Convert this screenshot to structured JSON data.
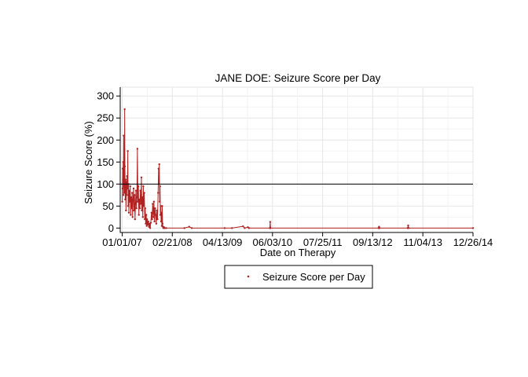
{
  "chart_data": {
    "type": "line",
    "title": "JANE DOE: Seizure Score per Day",
    "xlabel": "Date on Therapy",
    "ylabel": "Seizure Score (%)",
    "x_ticks": [
      "01/01/07",
      "02/21/08",
      "04/13/09",
      "06/03/10",
      "07/25/11",
      "09/13/12",
      "11/04/13",
      "12/26/14"
    ],
    "y_ticks": [
      0,
      50,
      100,
      150,
      200,
      250,
      300
    ],
    "xlim": [
      "12/15/06",
      "12/26/14"
    ],
    "ylim": [
      -10,
      320
    ],
    "grid": true,
    "reference_line": {
      "y": 100,
      "color": "#000000"
    },
    "legend": {
      "position": "bottom",
      "boxed": true,
      "entries": [
        "Seizure Score per Day"
      ]
    },
    "series": [
      {
        "name": "Seizure Score per Day",
        "color": "#b22222",
        "points": [
          [
            "2007-01-01",
            60
          ],
          [
            "2007-01-03",
            90
          ],
          [
            "2007-01-05",
            135
          ],
          [
            "2007-01-07",
            110
          ],
          [
            "2007-01-09",
            150
          ],
          [
            "2007-01-11",
            75
          ],
          [
            "2007-01-13",
            210
          ],
          [
            "2007-01-15",
            95
          ],
          [
            "2007-01-17",
            125
          ],
          [
            "2007-01-19",
            80
          ],
          [
            "2007-01-21",
            270
          ],
          [
            "2007-01-23",
            140
          ],
          [
            "2007-01-26",
            65
          ],
          [
            "2007-01-29",
            110
          ],
          [
            "2007-02-01",
            40
          ],
          [
            "2007-02-04",
            105
          ],
          [
            "2007-02-07",
            75
          ],
          [
            "2007-02-10",
            118
          ],
          [
            "2007-02-13",
            90
          ],
          [
            "2007-02-16",
            175
          ],
          [
            "2007-02-19",
            50
          ],
          [
            "2007-02-22",
            100
          ],
          [
            "2007-02-25",
            35
          ],
          [
            "2007-02-28",
            85
          ],
          [
            "2007-03-04",
            60
          ],
          [
            "2007-03-08",
            95
          ],
          [
            "2007-03-12",
            30
          ],
          [
            "2007-03-16",
            70
          ],
          [
            "2007-03-20",
            45
          ],
          [
            "2007-03-24",
            80
          ],
          [
            "2007-03-28",
            25
          ],
          [
            "2007-04-01",
            65
          ],
          [
            "2007-04-05",
            90
          ],
          [
            "2007-04-09",
            40
          ],
          [
            "2007-04-13",
            75
          ],
          [
            "2007-04-17",
            20
          ],
          [
            "2007-04-21",
            55
          ],
          [
            "2007-04-25",
            85
          ],
          [
            "2007-04-29",
            45
          ],
          [
            "2007-05-03",
            70
          ],
          [
            "2007-05-07",
            180
          ],
          [
            "2007-05-11",
            60
          ],
          [
            "2007-05-15",
            95
          ],
          [
            "2007-05-19",
            30
          ],
          [
            "2007-05-23",
            65
          ],
          [
            "2007-05-27",
            45
          ],
          [
            "2007-06-01",
            85
          ],
          [
            "2007-06-05",
            55
          ],
          [
            "2007-06-09",
            115
          ],
          [
            "2007-06-13",
            40
          ],
          [
            "2007-06-17",
            70
          ],
          [
            "2007-06-21",
            25
          ],
          [
            "2007-06-25",
            95
          ],
          [
            "2007-06-29",
            50
          ],
          [
            "2007-07-03",
            80
          ],
          [
            "2007-07-07",
            20
          ],
          [
            "2007-07-11",
            45
          ],
          [
            "2007-07-15",
            10
          ],
          [
            "2007-07-19",
            30
          ],
          [
            "2007-07-23",
            5
          ],
          [
            "2007-07-27",
            20
          ],
          [
            "2007-08-01",
            8
          ],
          [
            "2007-08-06",
            15
          ],
          [
            "2007-08-11",
            3
          ],
          [
            "2007-08-16",
            10
          ],
          [
            "2007-08-21",
            0
          ],
          [
            "2007-08-26",
            12
          ],
          [
            "2007-09-01",
            35
          ],
          [
            "2007-09-06",
            20
          ],
          [
            "2007-09-11",
            55
          ],
          [
            "2007-09-16",
            25
          ],
          [
            "2007-09-21",
            60
          ],
          [
            "2007-09-26",
            15
          ],
          [
            "2007-10-01",
            45
          ],
          [
            "2007-10-06",
            30
          ],
          [
            "2007-10-11",
            10
          ],
          [
            "2007-10-16",
            40
          ],
          [
            "2007-10-21",
            20
          ],
          [
            "2007-10-26",
            80
          ],
          [
            "2007-10-30",
            135
          ],
          [
            "2007-11-02",
            100
          ],
          [
            "2007-11-05",
            145
          ],
          [
            "2007-11-08",
            60
          ],
          [
            "2007-11-11",
            95
          ],
          [
            "2007-11-14",
            30
          ],
          [
            "2007-11-17",
            50
          ],
          [
            "2007-11-20",
            15
          ],
          [
            "2007-11-23",
            35
          ],
          [
            "2007-11-26",
            5
          ],
          [
            "2007-11-29",
            50
          ],
          [
            "2007-12-02",
            10
          ],
          [
            "2007-12-05",
            3
          ],
          [
            "2007-12-09",
            0
          ],
          [
            "2007-12-14",
            2
          ],
          [
            "2007-12-20",
            0
          ],
          [
            "2008-01-01",
            0
          ],
          [
            "2008-06-01",
            0
          ],
          [
            "2008-07-10",
            3
          ],
          [
            "2008-08-01",
            0
          ],
          [
            "2009-05-01",
            0
          ],
          [
            "2009-07-01",
            0
          ],
          [
            "2009-10-01",
            4
          ],
          [
            "2009-10-15",
            0
          ],
          [
            "2009-11-10",
            2
          ],
          [
            "2009-11-20",
            0
          ],
          [
            "2010-05-12",
            0
          ],
          [
            "2010-05-15",
            14
          ],
          [
            "2010-05-18",
            0
          ],
          [
            "2012-11-01",
            0
          ],
          [
            "2012-11-05",
            3
          ],
          [
            "2012-11-09",
            0
          ],
          [
            "2013-07-01",
            0
          ],
          [
            "2013-07-05",
            6
          ],
          [
            "2013-07-09",
            0
          ],
          [
            "2014-12-26",
            0
          ]
        ]
      }
    ]
  }
}
